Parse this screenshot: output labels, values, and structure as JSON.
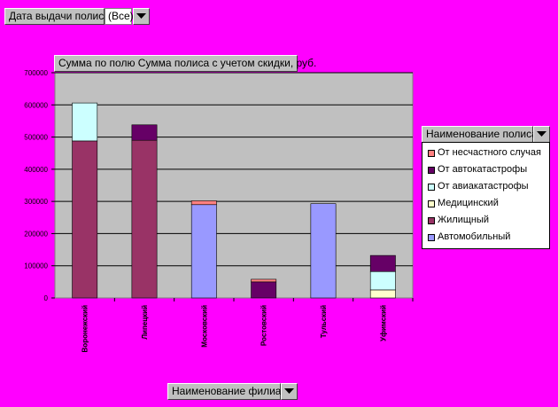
{
  "page_filter": {
    "field_label": "Дата выдачи полиса",
    "value": "(Все)"
  },
  "data_field_label": "Сумма по полю Сумма полиса с учетом скидки, руб.",
  "legend": {
    "field_label": "Наименование полиса"
  },
  "axis_field_label": "Наименование филиала",
  "colors": {
    "background": "#ff00ff",
    "plot_area": "#c0c0c0",
    "Автомобильный": "#9999ff",
    "Жилищный": "#993366",
    "Медицинский": "#ffffcc",
    "От авиакатастрофы": "#ccffff",
    "От автокатастрофы": "#660066",
    "От несчастного случая": "#ff8080"
  },
  "chart_data": {
    "type": "bar",
    "stacked": true,
    "categories": [
      "Воронежский",
      "Липецкий",
      "Московский",
      "Ростовский",
      "Тульский",
      "Уфимский"
    ],
    "series": [
      {
        "name": "Автомобильный",
        "values": [
          0,
          0,
          290000,
          0,
          293000,
          0
        ]
      },
      {
        "name": "Жилищный",
        "values": [
          488000,
          490000,
          0,
          0,
          0,
          0
        ]
      },
      {
        "name": "Медицинский",
        "values": [
          0,
          0,
          0,
          0,
          0,
          25000
        ]
      },
      {
        "name": "От авиакатастрофы",
        "values": [
          118000,
          0,
          0,
          0,
          0,
          57000
        ]
      },
      {
        "name": "От автокатастрофы",
        "values": [
          0,
          48000,
          0,
          50000,
          0,
          50000
        ]
      },
      {
        "name": "От несчастного случая",
        "values": [
          0,
          0,
          12000,
          8000,
          0,
          0
        ]
      }
    ],
    "legend_order": [
      "От несчастного случая",
      "От автокатастрофы",
      "От авиакатастрофы",
      "Медицинский",
      "Жилищный",
      "Автомобильный"
    ],
    "yticks": [
      "0",
      "100000",
      "200000",
      "300000",
      "400000",
      "500000",
      "600000",
      "700000"
    ],
    "ylim": [
      0,
      700000
    ],
    "grid": true,
    "legend_position": "right"
  }
}
